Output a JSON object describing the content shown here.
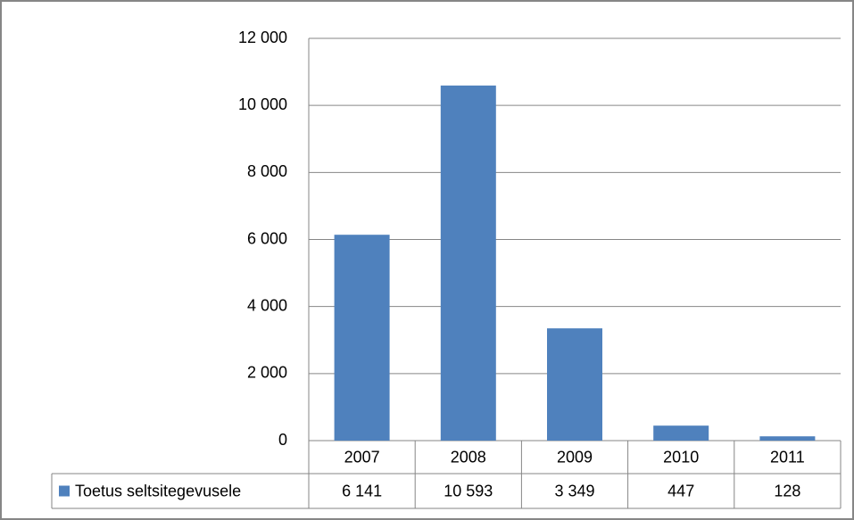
{
  "chart_data": {
    "type": "bar",
    "categories": [
      "2007",
      "2008",
      "2009",
      "2010",
      "2011"
    ],
    "series": [
      {
        "name": "Toetus seltsitegevusele",
        "color": "#4f81bd",
        "values": [
          6141,
          10593,
          3349,
          447,
          128
        ],
        "value_labels": [
          "6 141",
          "10 593",
          "3 349",
          "447",
          "128"
        ]
      }
    ],
    "ylim": [
      0,
      12000
    ],
    "yticks": [
      0,
      {
        "value": 2000,
        "label": "2 000"
      },
      {
        "value": 4000,
        "label": "4 000"
      },
      {
        "value": 6000,
        "label": "6 000"
      },
      {
        "value": 8000,
        "label": "8 000"
      },
      {
        "value": 10000,
        "label": "10 000"
      },
      {
        "value": 12000,
        "label": "12 000"
      }
    ],
    "grid": true,
    "legend": "table"
  }
}
